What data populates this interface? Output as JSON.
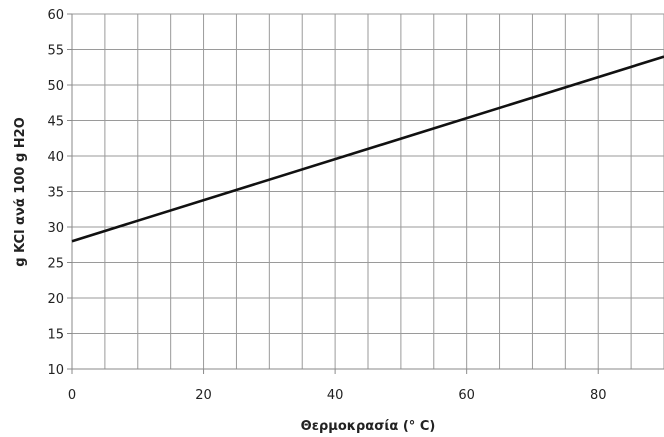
{
  "chart_data": {
    "type": "line",
    "title": "",
    "xlabel": "Θερμοκρασία (° C)",
    "ylabel": "g KCl ανά 100 g H2O",
    "xlim": [
      0,
      90
    ],
    "ylim": [
      10,
      60
    ],
    "x_tick_labels": [
      "0",
      "20",
      "40",
      "60",
      "80"
    ],
    "y_tick_labels": [
      "10",
      "15",
      "20",
      "25",
      "30",
      "35",
      "40",
      "45",
      "50",
      "55",
      "60"
    ],
    "grid": true,
    "series": [
      {
        "x": [
          0,
          90
        ],
        "y": [
          28,
          54
        ],
        "color": "#111111"
      }
    ]
  }
}
